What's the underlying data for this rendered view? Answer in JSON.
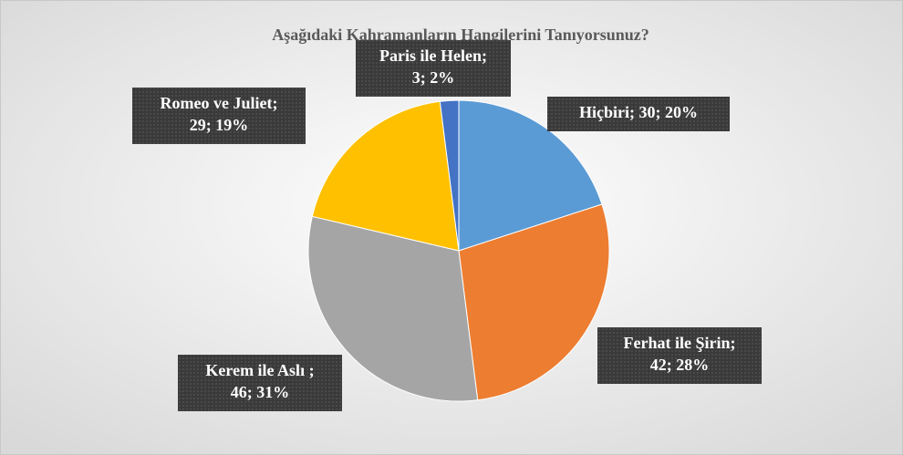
{
  "chart_data": {
    "type": "pie",
    "title": "Aşağıdaki Kahramanların Hangilerini Tanıyorsunuz?",
    "categories": [
      "Hiçbiri",
      "Ferhat ile Şirin",
      "Kerem ile Aslı",
      "Romeo ve Juliet",
      "Paris ile Helen"
    ],
    "values": [
      30,
      42,
      46,
      29,
      3
    ],
    "value_labels": [
      [
        "Hiçbiri; 30; 20%"
      ],
      [
        "Ferhat ile Şirin;",
        "42; 28%"
      ],
      [
        "Kerem ile Aslı ;",
        "46; 31%"
      ],
      [
        "Romeo ve Juliet;",
        "29; 19%"
      ],
      [
        "Paris ile Helen;",
        "3; 2%"
      ]
    ],
    "colors": [
      "#5b9bd5",
      "#ed7d31",
      "#a5a5a5",
      "#ffc000",
      "#4472c4"
    ]
  }
}
